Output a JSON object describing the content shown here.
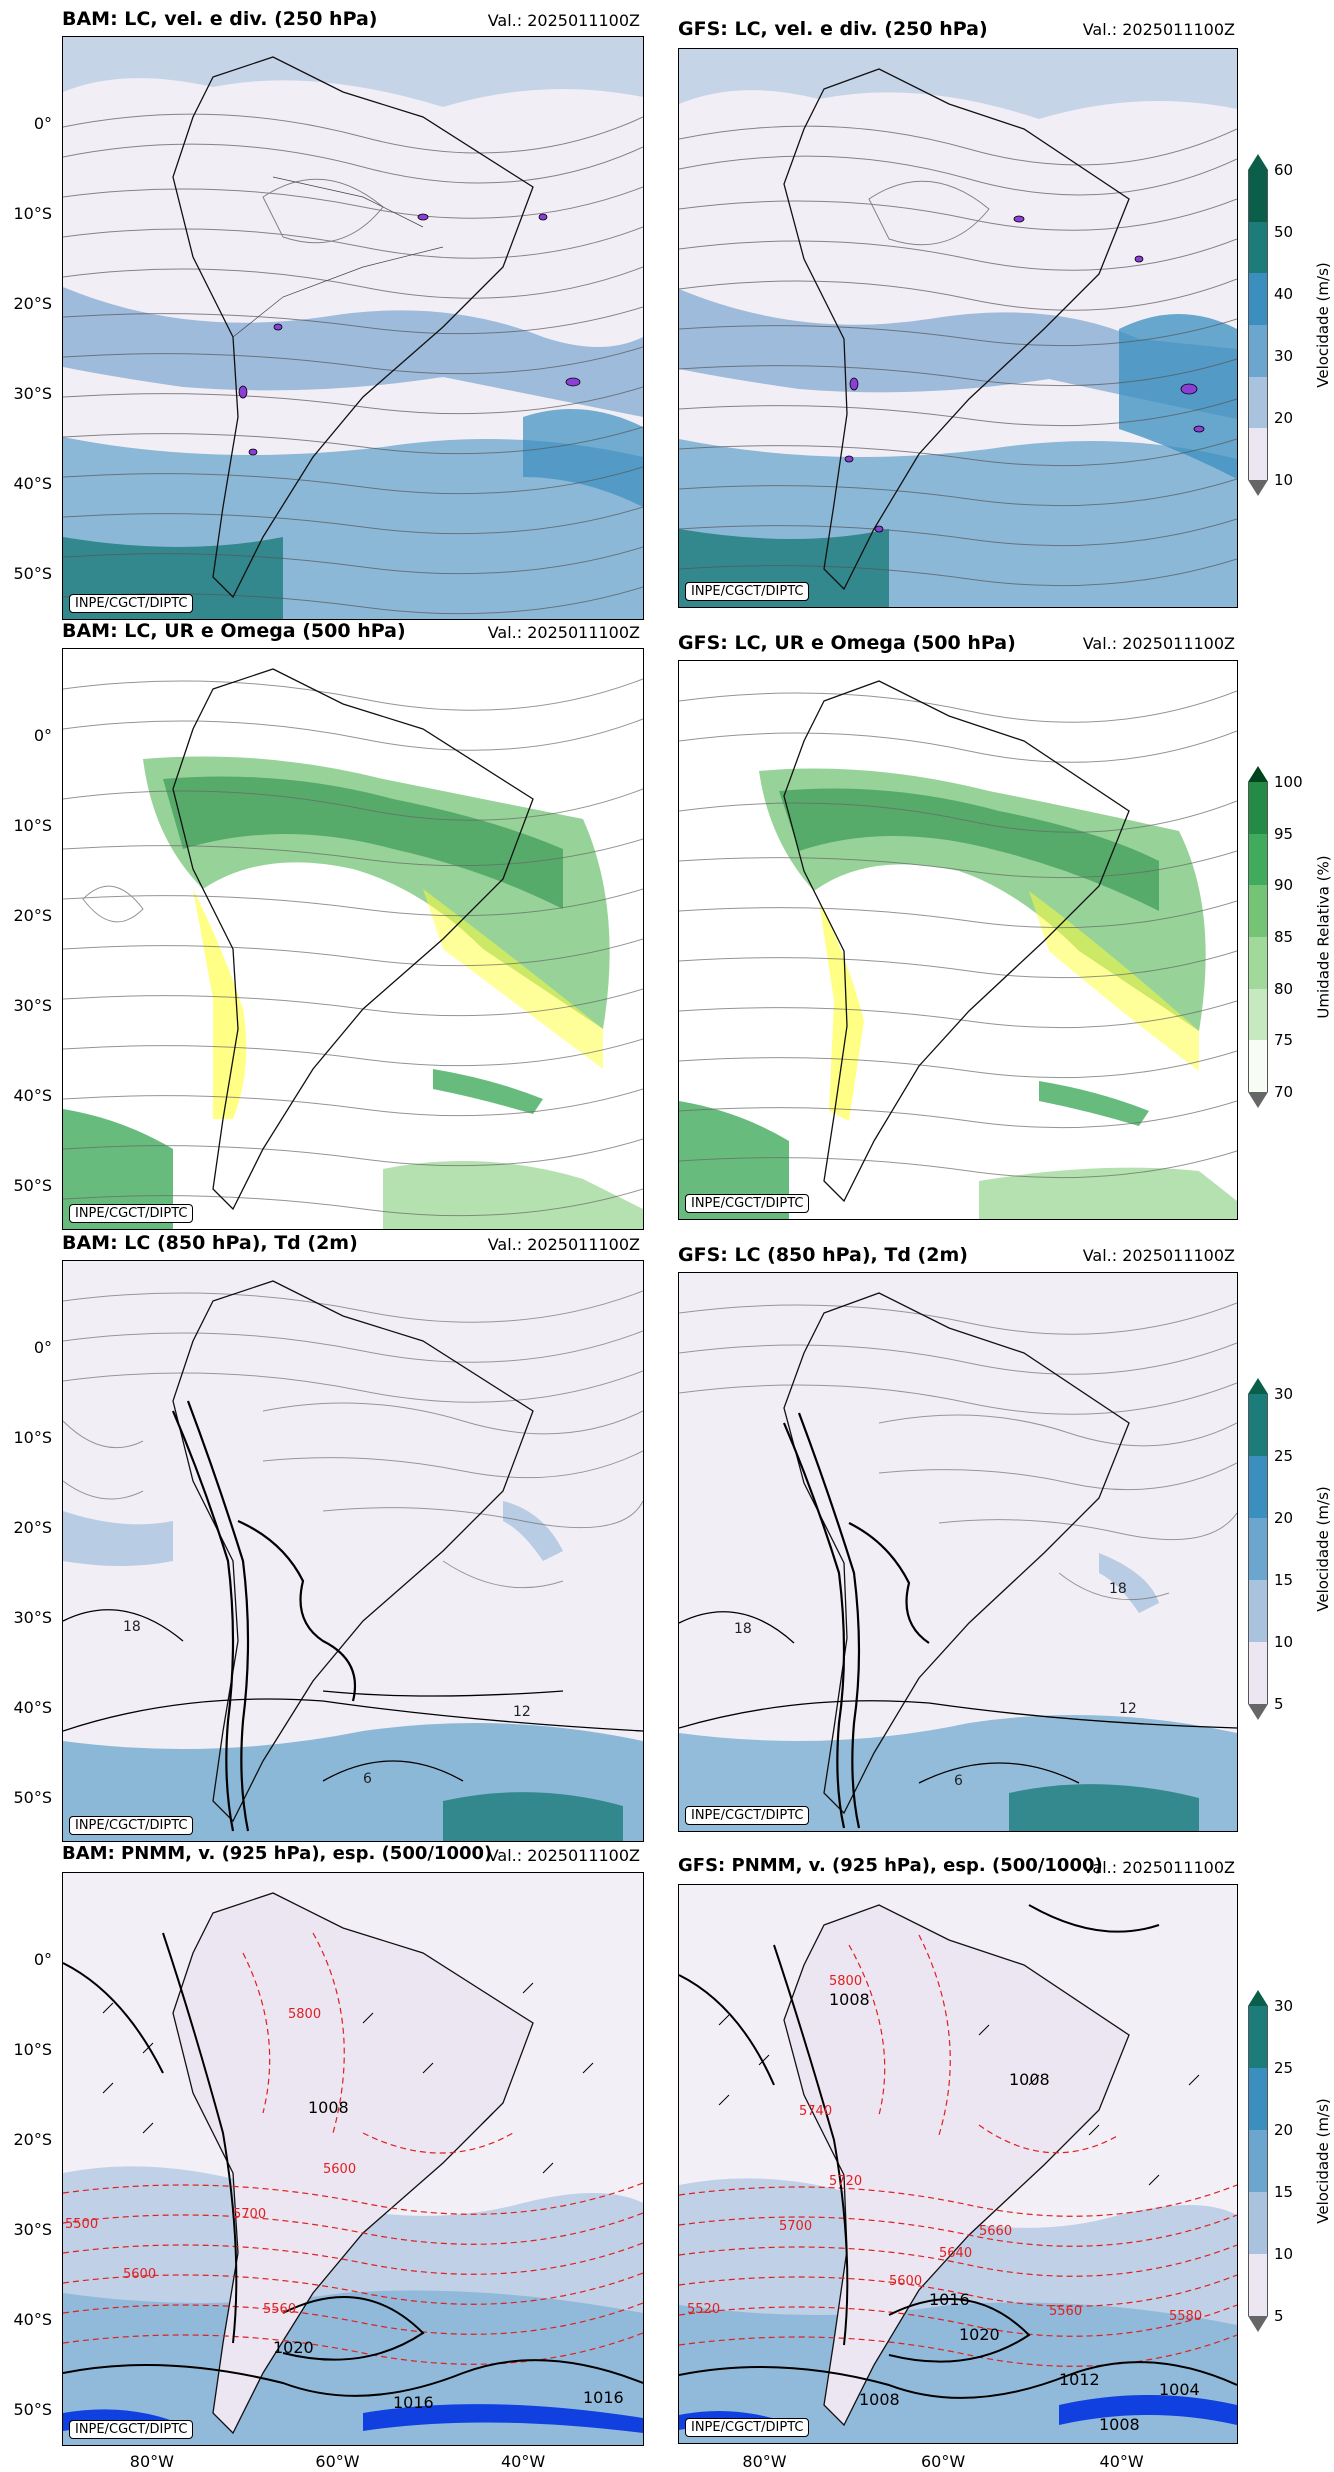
{
  "panels": [
    {
      "title": "BAM: LC, vel. e div. (250 hPa)",
      "valid": "Val.: 2025011100Z",
      "credit": "INPE/CGCT/DIPTC"
    },
    {
      "title": "GFS: LC, vel. e div. (250 hPa)",
      "valid": "Val.: 2025011100Z",
      "credit": "INPE/CGCT/DIPTC"
    },
    {
      "title": "BAM: LC, UR e Omega (500 hPa)",
      "valid": "Val.: 2025011100Z",
      "credit": "INPE/CGCT/DIPTC"
    },
    {
      "title": "GFS: LC, UR e Omega (500 hPa)",
      "valid": "Val.: 2025011100Z",
      "credit": "INPE/CGCT/DIPTC"
    },
    {
      "title": "BAM: LC (850 hPa), Td (2m)",
      "valid": "Val.: 2025011100Z",
      "credit": "INPE/CGCT/DIPTC"
    },
    {
      "title": "GFS: LC (850 hPa), Td (2m)",
      "valid": "Val.: 2025011100Z",
      "credit": "INPE/CGCT/DIPTC"
    },
    {
      "title": "BAM: PNMM, v. (925 hPa), esp. (500/1000)",
      "valid": "Val.: 2025011100Z",
      "credit": "INPE/CGCT/DIPTC"
    },
    {
      "title": "GFS: PNMM, v. (925 hPa), esp. (500/1000)",
      "valid": "Val.: 2025011100Z",
      "credit": "INPE/CGCT/DIPTC"
    }
  ],
  "lat_ticks": [
    "0°",
    "10°S",
    "20°S",
    "30°S",
    "40°S",
    "50°S"
  ],
  "lon_ticks": [
    "80°W",
    "60°W",
    "40°W"
  ],
  "colorbars": [
    {
      "label": "Velocidade (m/s)",
      "ticks": [
        "10",
        "20",
        "30",
        "40",
        "50",
        "60"
      ],
      "colors": [
        "#ece6f2",
        "#a9c3df",
        "#6aa6cd",
        "#3a8fbf",
        "#1c7c7a",
        "#0b5f4a"
      ],
      "extend_top": "#0b5f4a",
      "extend_bottom": "#ffffff"
    },
    {
      "label": "Umidade Relativa (%)",
      "ticks": [
        "70",
        "75",
        "80",
        "85",
        "90",
        "95",
        "100"
      ],
      "colors": [
        "#f7fcf5",
        "#c7e9c0",
        "#a1d99b",
        "#74c476",
        "#41ab5d",
        "#238b45"
      ],
      "extend_top": "#00441b",
      "extend_bottom": "#ffffff"
    },
    {
      "label": "Velocidade (m/s)",
      "ticks": [
        "5",
        "10",
        "15",
        "20",
        "25",
        "30"
      ],
      "colors": [
        "#ece6f2",
        "#a9c3df",
        "#6aa6cd",
        "#3a8fbf",
        "#1c7c7a"
      ],
      "extend_top": "#0b5f4a",
      "extend_bottom": "#ffffff"
    },
    {
      "label": "Velocidade (m/s)",
      "ticks": [
        "5",
        "10",
        "15",
        "20",
        "25",
        "30"
      ],
      "colors": [
        "#ece6f2",
        "#a9c3df",
        "#6aa6cd",
        "#3a8fbf",
        "#1c7c7a"
      ],
      "extend_top": "#0b5f4a",
      "extend_bottom": "#ffffff"
    }
  ],
  "contour_labels": {
    "td_bam": [
      "18",
      "12",
      "6"
    ],
    "td_gfs": [
      "18",
      "12",
      "6",
      "18"
    ],
    "pnmm_bam": [
      "1016",
      "1008",
      "1020",
      "1016"
    ],
    "thick_bam": [
      "5800",
      "5600",
      "5700",
      "5600",
      "5560",
      "5500"
    ],
    "pnmm_gfs": [
      "1008",
      "1008",
      "1016",
      "1020",
      "1008",
      "1012",
      "1004",
      "1008"
    ],
    "thick_gfs": [
      "5740",
      "5800",
      "5720",
      "5700",
      "5660",
      "5600",
      "5560",
      "5580",
      "5640",
      "5520"
    ]
  },
  "chart_data": [
    {
      "type": "heatmap",
      "title": "BAM: LC, vel. e div. (250 hPa)",
      "xlabel": "",
      "ylabel": "",
      "variable": "Velocidade (m/s)",
      "levels": [
        10,
        20,
        30,
        40,
        50,
        60
      ],
      "overlay": "linhas de corrente, divergência",
      "valid": "2025011100Z",
      "y_ticks": [
        "0°",
        "10°S",
        "20°S",
        "30°S",
        "40°S",
        "50°S"
      ]
    },
    {
      "type": "heatmap",
      "title": "GFS: LC, vel. e div. (250 hPa)",
      "xlabel": "",
      "ylabel": "",
      "variable": "Velocidade (m/s)",
      "levels": [
        10,
        20,
        30,
        40,
        50,
        60
      ],
      "overlay": "linhas de corrente, divergência",
      "valid": "2025011100Z"
    },
    {
      "type": "heatmap",
      "title": "BAM: LC, UR e Omega (500 hPa)",
      "xlabel": "",
      "ylabel": "",
      "variable": "Umidade Relativa (%)",
      "levels": [
        70,
        75,
        80,
        85,
        90,
        95,
        100
      ],
      "overlay": "linhas de corrente, omega",
      "valid": "2025011100Z",
      "y_ticks": [
        "0°",
        "10°S",
        "20°S",
        "30°S",
        "40°S",
        "50°S"
      ]
    },
    {
      "type": "heatmap",
      "title": "GFS: LC, UR e Omega (500 hPa)",
      "xlabel": "",
      "ylabel": "",
      "variable": "Umidade Relativa (%)",
      "levels": [
        70,
        75,
        80,
        85,
        90,
        95,
        100
      ],
      "overlay": "linhas de corrente, omega",
      "valid": "2025011100Z"
    },
    {
      "type": "heatmap",
      "title": "BAM: LC (850 hPa), Td (2m)",
      "xlabel": "",
      "ylabel": "",
      "variable": "Velocidade (m/s)",
      "levels": [
        5,
        10,
        15,
        20,
        25,
        30
      ],
      "overlay": "linhas de corrente, Td 2m contours",
      "contour_labels": [
        18,
        12,
        6
      ],
      "valid": "2025011100Z",
      "y_ticks": [
        "0°",
        "10°S",
        "20°S",
        "30°S",
        "40°S",
        "50°S"
      ]
    },
    {
      "type": "heatmap",
      "title": "GFS: LC (850 hPa), Td (2m)",
      "xlabel": "",
      "ylabel": "",
      "variable": "Velocidade (m/s)",
      "levels": [
        5,
        10,
        15,
        20,
        25,
        30
      ],
      "overlay": "linhas de corrente, Td 2m contours",
      "contour_labels": [
        18,
        12,
        6,
        18
      ],
      "valid": "2025011100Z"
    },
    {
      "type": "heatmap",
      "title": "BAM: PNMM, v. (925 hPa), esp. (500/1000)",
      "xlabel": "",
      "ylabel": "",
      "variable": "Velocidade (m/s)",
      "levels": [
        5,
        10,
        15,
        20,
        25,
        30
      ],
      "pnmm_labels": [
        1016,
        1008,
        1020,
        1016
      ],
      "thickness_labels": [
        5800,
        5600,
        5700,
        5600,
        5560,
        5500
      ],
      "valid": "2025011100Z",
      "y_ticks": [
        "0°",
        "10°S",
        "20°S",
        "30°S",
        "40°S",
        "50°S"
      ],
      "x_ticks": [
        "80°W",
        "60°W",
        "40°W"
      ]
    },
    {
      "type": "heatmap",
      "title": "GFS: PNMM, v. (925 hPa), esp. (500/1000)",
      "xlabel": "",
      "ylabel": "",
      "variable": "Velocidade (m/s)",
      "levels": [
        5,
        10,
        15,
        20,
        25,
        30
      ],
      "pnmm_labels": [
        1008,
        1008,
        1016,
        1020,
        1008,
        1012,
        1004,
        1008
      ],
      "thickness_labels": [
        5740,
        5800,
        5720,
        5700,
        5660,
        5600,
        5560,
        5580,
        5640,
        5520
      ],
      "valid": "2025011100Z",
      "x_ticks": [
        "80°W",
        "60°W",
        "40°W"
      ]
    }
  ]
}
